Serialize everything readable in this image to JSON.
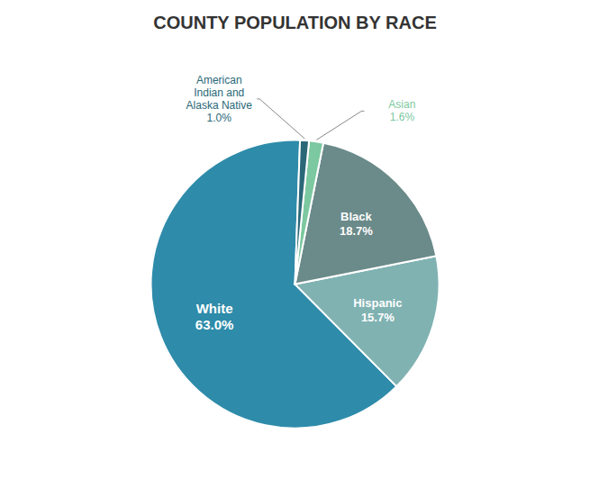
{
  "chart_data": {
    "type": "pie",
    "title": "COUNTY POPULATION BY RACE",
    "categories": [
      "White",
      "Hispanic",
      "Black",
      "Asian",
      "American Indian and Alaska Native"
    ],
    "values": [
      63.0,
      15.7,
      18.7,
      1.6,
      1.0
    ],
    "value_labels": [
      "63.0%",
      "15.7%",
      "18.7%",
      "1.6%",
      "1.0%"
    ],
    "colors": [
      "#2E8BAA",
      "#80B2B2",
      "#6B8A8A",
      "#7CC8A0",
      "#2A6878"
    ],
    "data_labels": true
  }
}
